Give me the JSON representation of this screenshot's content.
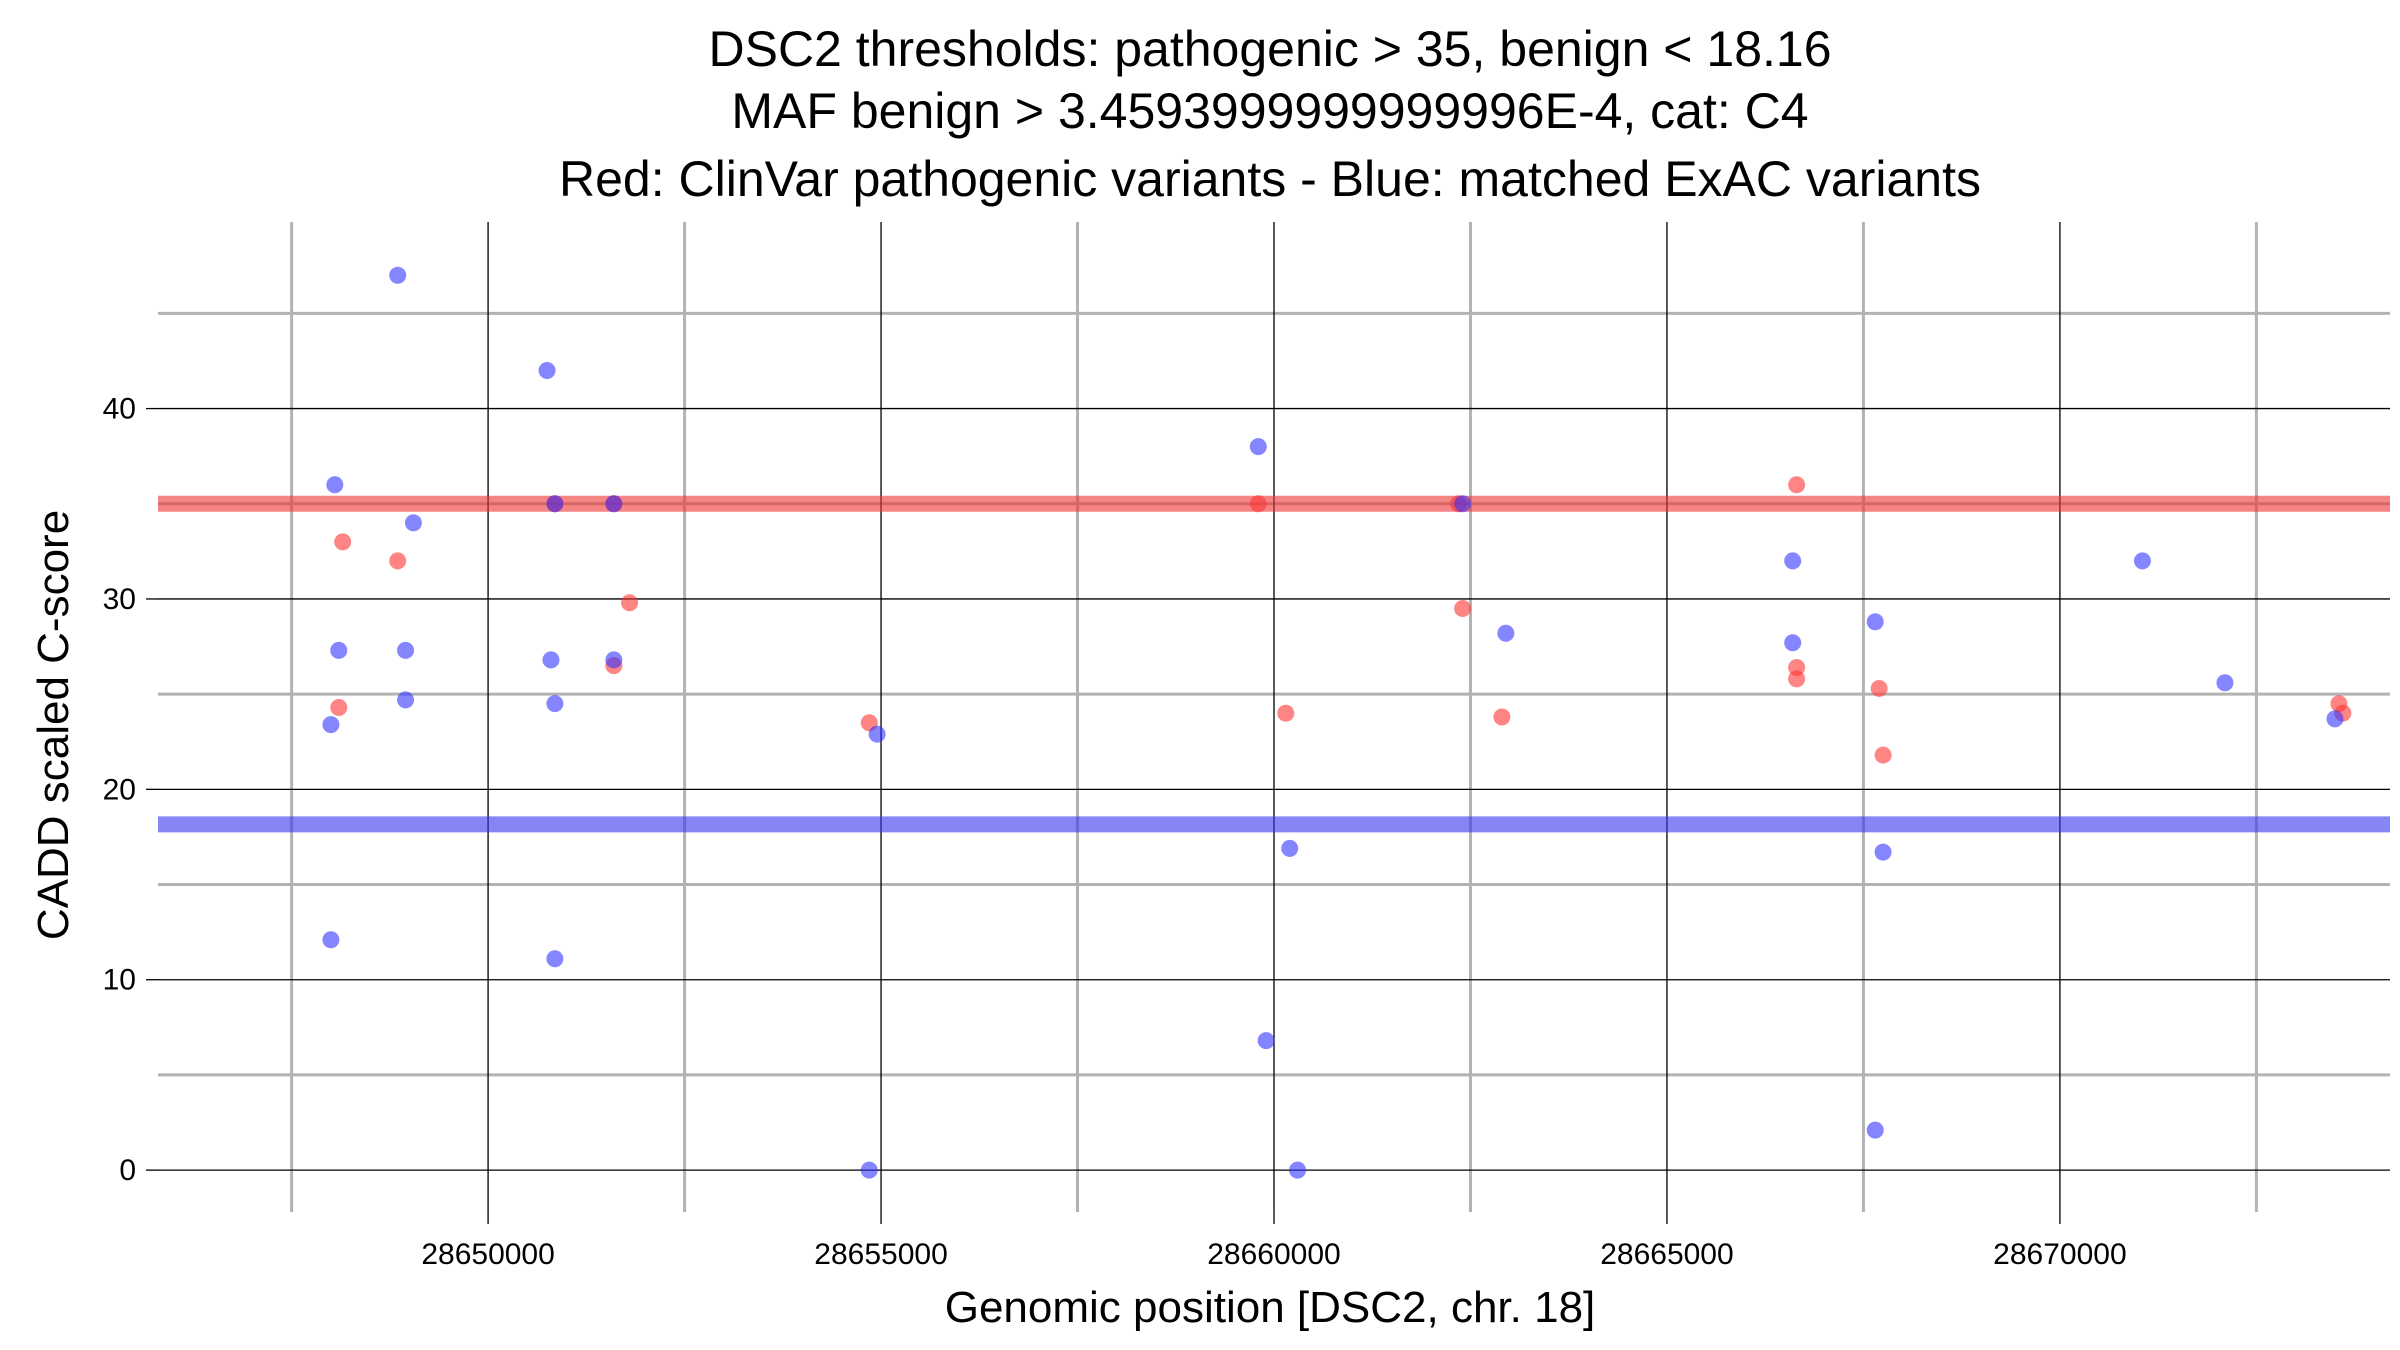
{
  "chart_data": {
    "type": "scatter",
    "title_lines": [
      "DSC2 thresholds: pathogenic > 35, benign < 18.16",
      "MAF benign > 3.4593999999999996E-4, cat: C4",
      "Red: ClinVar pathogenic variants - Blue: matched ExAC variants"
    ],
    "xlabel": "Genomic position [DSC2, chr. 18]",
    "ylabel": "CADD scaled C-score",
    "xlim": [
      28645800,
      28674200
    ],
    "ylim": [
      -2.2,
      49.8
    ],
    "x_ticks": [
      {
        "value": 28650000,
        "label": "28650000"
      },
      {
        "value": 28655000,
        "label": "28655000"
      },
      {
        "value": 28660000,
        "label": "28660000"
      },
      {
        "value": 28665000,
        "label": "28665000"
      },
      {
        "value": 28670000,
        "label": "28670000"
      }
    ],
    "y_ticks": [
      {
        "value": 0,
        "label": "0"
      },
      {
        "value": 10,
        "label": "10"
      },
      {
        "value": 20,
        "label": "20"
      },
      {
        "value": 30,
        "label": "30"
      },
      {
        "value": 40,
        "label": "40"
      }
    ],
    "minor_x": [
      28647500,
      28652500,
      28657500,
      28662500,
      28667500,
      28672500
    ],
    "minor_y": [
      5,
      15,
      25,
      35,
      45
    ],
    "thresholds": [
      {
        "name": "pathogenic",
        "value": 35,
        "color": "#ee3333"
      },
      {
        "name": "benign",
        "value": 18.16,
        "color": "#3333ee"
      }
    ],
    "colors": {
      "pathogenic": "#ff3333",
      "benign": "#3333ff"
    },
    "series": [
      {
        "name": "ClinVar pathogenic variants",
        "color": "#ff3333",
        "points": [
          {
            "x": 28648150,
            "y": 33
          },
          {
            "x": 28648850,
            "y": 32
          },
          {
            "x": 28648100,
            "y": 24.3
          },
          {
            "x": 28650850,
            "y": 35
          },
          {
            "x": 28651600,
            "y": 35
          },
          {
            "x": 28651600,
            "y": 26.5
          },
          {
            "x": 28651800,
            "y": 29.8
          },
          {
            "x": 28654850,
            "y": 23.5
          },
          {
            "x": 28659800,
            "y": 35
          },
          {
            "x": 28660150,
            "y": 24
          },
          {
            "x": 28662400,
            "y": 29.5
          },
          {
            "x": 28662350,
            "y": 35
          },
          {
            "x": 28662900,
            "y": 23.8
          },
          {
            "x": 28666650,
            "y": 36
          },
          {
            "x": 28666650,
            "y": 26.4
          },
          {
            "x": 28666650,
            "y": 25.8
          },
          {
            "x": 28667700,
            "y": 25.3
          },
          {
            "x": 28667750,
            "y": 21.8
          },
          {
            "x": 28673550,
            "y": 24.5
          },
          {
            "x": 28673600,
            "y": 24
          }
        ]
      },
      {
        "name": "matched ExAC variants",
        "color": "#3333ff",
        "points": [
          {
            "x": 28648850,
            "y": 47
          },
          {
            "x": 28650750,
            "y": 42
          },
          {
            "x": 28648050,
            "y": 36
          },
          {
            "x": 28649050,
            "y": 34
          },
          {
            "x": 28648100,
            "y": 27.3
          },
          {
            "x": 28648950,
            "y": 27.3
          },
          {
            "x": 28648950,
            "y": 24.7
          },
          {
            "x": 28648000,
            "y": 23.4
          },
          {
            "x": 28648000,
            "y": 12.1
          },
          {
            "x": 28650850,
            "y": 35
          },
          {
            "x": 28651600,
            "y": 35
          },
          {
            "x": 28650800,
            "y": 26.8
          },
          {
            "x": 28650850,
            "y": 24.5
          },
          {
            "x": 28650850,
            "y": 11.1
          },
          {
            "x": 28651600,
            "y": 26.8
          },
          {
            "x": 28654850,
            "y": 0
          },
          {
            "x": 28654950,
            "y": 22.9
          },
          {
            "x": 28659800,
            "y": 38
          },
          {
            "x": 28659900,
            "y": 6.8
          },
          {
            "x": 28660200,
            "y": 16.9
          },
          {
            "x": 28660300,
            "y": 0
          },
          {
            "x": 28662400,
            "y": 35
          },
          {
            "x": 28662950,
            "y": 28.2
          },
          {
            "x": 28666600,
            "y": 32
          },
          {
            "x": 28666600,
            "y": 27.7
          },
          {
            "x": 28667650,
            "y": 28.8
          },
          {
            "x": 28667750,
            "y": 16.7
          },
          {
            "x": 28667650,
            "y": 2.1
          },
          {
            "x": 28671050,
            "y": 32
          },
          {
            "x": 28672100,
            "y": 25.6
          },
          {
            "x": 28673500,
            "y": 23.7
          }
        ]
      }
    ]
  }
}
